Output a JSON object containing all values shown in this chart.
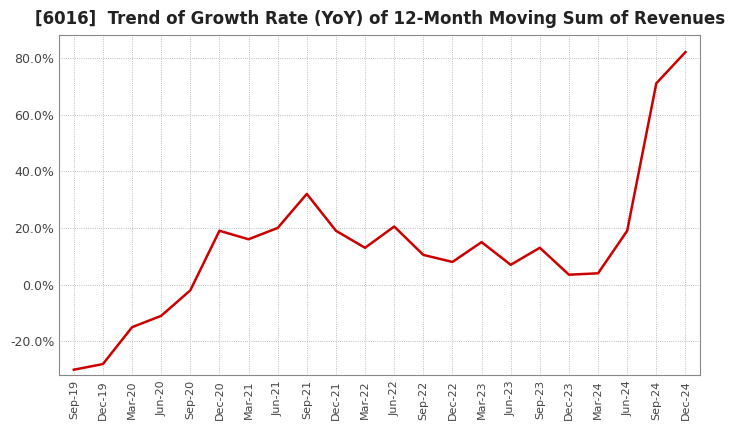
{
  "title": "[6016]  Trend of Growth Rate (YoY) of 12-Month Moving Sum of Revenues",
  "title_fontsize": 12,
  "line_color": "#cc0000",
  "background_color": "#ffffff",
  "grid_color": "#aaaaaa",
  "ylim": [
    -32,
    88
  ],
  "yticks": [
    -20.0,
    0.0,
    20.0,
    40.0,
    60.0,
    80.0
  ],
  "data": [
    [
      "Sep-19",
      -30.0
    ],
    [
      "Dec-19",
      -28.0
    ],
    [
      "Mar-20",
      -15.0
    ],
    [
      "Jun-20",
      -11.0
    ],
    [
      "Sep-20",
      -2.0
    ],
    [
      "Dec-20",
      19.0
    ],
    [
      "Mar-21",
      16.0
    ],
    [
      "Jun-21",
      20.0
    ],
    [
      "Sep-21",
      32.0
    ],
    [
      "Dec-21",
      19.0
    ],
    [
      "Mar-22",
      13.0
    ],
    [
      "Jun-22",
      20.5
    ],
    [
      "Sep-22",
      10.5
    ],
    [
      "Dec-22",
      8.0
    ],
    [
      "Mar-23",
      15.0
    ],
    [
      "Jun-23",
      7.0
    ],
    [
      "Sep-23",
      13.0
    ],
    [
      "Dec-23",
      3.5
    ],
    [
      "Mar-24",
      4.0
    ],
    [
      "Jun-24",
      19.0
    ],
    [
      "Sep-24",
      71.0
    ],
    [
      "Dec-24",
      82.0
    ]
  ]
}
